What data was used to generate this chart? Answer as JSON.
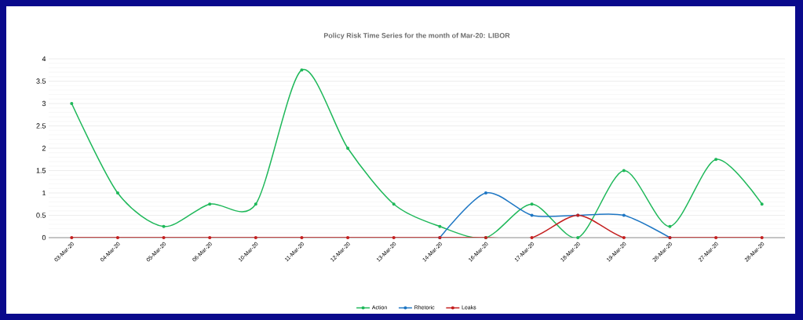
{
  "chart_data": {
    "type": "line",
    "title": "Policy Risk Time Series for the month of Mar-20: LIBOR",
    "categories": [
      "03-Mar-20",
      "04-Mar-20",
      "05-Mar-20",
      "06-Mar-20",
      "10-Mar-20",
      "11-Mar-20",
      "12-Mar-20",
      "13-Mar-20",
      "14-Mar-20",
      "16-Mar-20",
      "17-Mar-20",
      "18-Mar-20",
      "19-Mar-20",
      "26-Mar-20",
      "27-Mar-20",
      "28-Mar-20"
    ],
    "series": [
      {
        "name": "Action",
        "color": "#1fb85a",
        "values": [
          3,
          1,
          0.25,
          0.75,
          0.75,
          3.75,
          2,
          0.75,
          0.25,
          0,
          0.75,
          0,
          1.5,
          0.25,
          1.75,
          0.75
        ]
      },
      {
        "name": "Rhetoric",
        "color": "#1f77c4",
        "values": [
          null,
          null,
          null,
          null,
          null,
          null,
          null,
          null,
          0,
          1,
          0.5,
          0.5,
          0.5,
          0,
          null,
          null
        ]
      },
      {
        "name": "Leaks",
        "color": "#c41f1f",
        "values": [
          0,
          0,
          0,
          0,
          0,
          0,
          0,
          0,
          0,
          0,
          0,
          0.5,
          0,
          0,
          0,
          0
        ]
      }
    ],
    "ylim": [
      0,
      4
    ],
    "yticks": [
      0,
      0.5,
      1,
      1.5,
      2,
      2.5,
      3,
      3.5,
      4
    ],
    "grid": "y",
    "legend": "bottom",
    "marker": "circle",
    "line_style": "solid"
  }
}
